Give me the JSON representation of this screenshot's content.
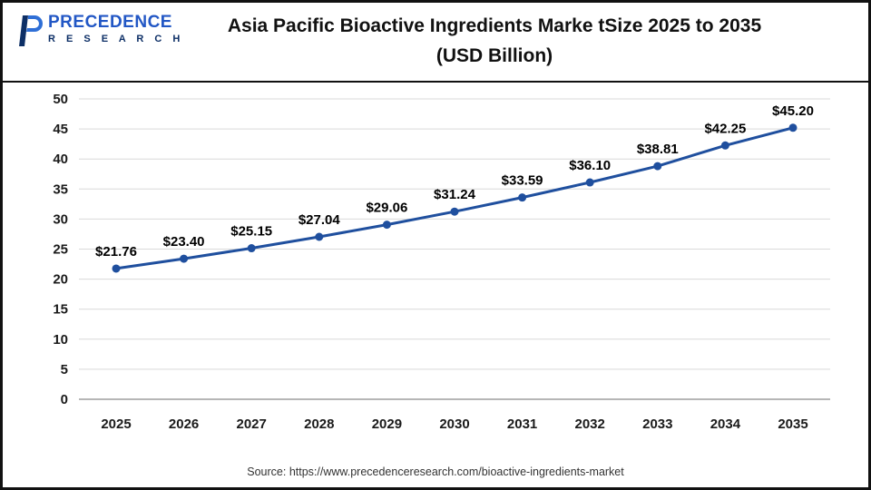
{
  "header": {
    "logo": {
      "brand": "PRECEDENCE",
      "sub": "R E S E A R C H"
    },
    "title_line1": "Asia Pacific Bioactive Ingredients Marke tSize 2025 to 2035",
    "title_line2": "(USD Billion)"
  },
  "footer": {
    "source": "Source: https://www.precedenceresearch.com/bioactive-ingredients-market"
  },
  "chart_data": {
    "type": "line",
    "title": "Asia Pacific Bioactive Ingredients Market Size 2025 to 2035 (USD Billion)",
    "categories": [
      "2025",
      "2026",
      "2027",
      "2028",
      "2029",
      "2030",
      "2031",
      "2032",
      "2033",
      "2034",
      "2035"
    ],
    "values": [
      21.76,
      23.4,
      25.15,
      27.04,
      29.06,
      31.24,
      33.59,
      36.1,
      38.81,
      42.25,
      45.2
    ],
    "labels": [
      "$21.76",
      "$23.40",
      "$25.15",
      "$27.04",
      "$29.06",
      "$31.24",
      "$33.59",
      "$36.10",
      "$38.81",
      "$42.25",
      "$45.20"
    ],
    "xlabel": "",
    "ylabel": "",
    "ylim": [
      0,
      50
    ],
    "yticks": [
      0,
      5,
      10,
      15,
      20,
      25,
      30,
      35,
      40,
      45,
      50
    ],
    "grid": true,
    "legend": "none",
    "line_color": "#1f4f9e",
    "marker_color": "#1f4f9e",
    "grid_color": "#d9d9d9",
    "axis_color": "#9e9e9e"
  }
}
